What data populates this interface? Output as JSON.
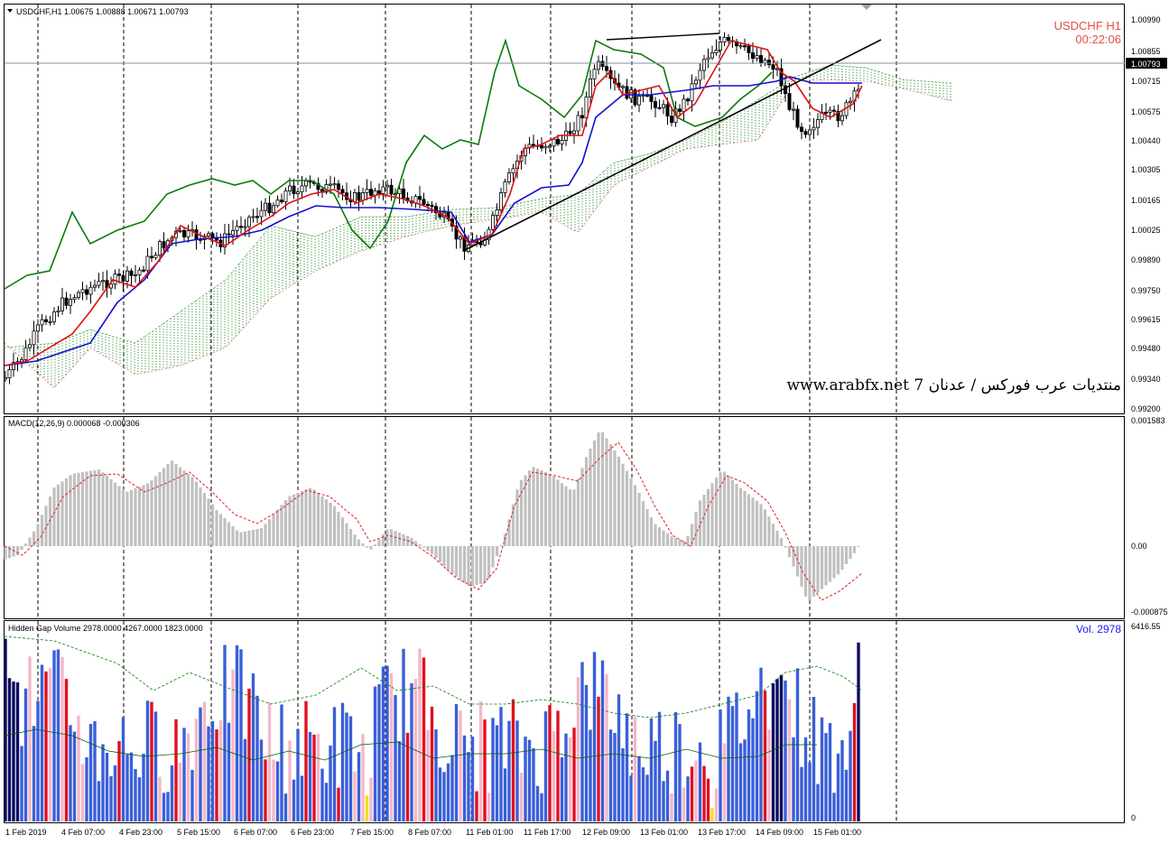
{
  "main_header": "USDCHF,H1  1.00675 1.00888 1.00671 1.00793",
  "symbol_label": "USDCHF  H1",
  "timer_label": "00:22:06",
  "watermark": "www.arabfx.net 7 منتديات عرب فوركس / عدنان",
  "current_price_label": "1.00793",
  "price_axis": [
    "1.00990",
    "1.00855",
    "1.00793",
    "1.00715",
    "1.00575",
    "1.00440",
    "1.00305",
    "1.00165",
    "1.00025",
    "0.99890",
    "0.99750",
    "0.99615",
    "0.99480",
    "0.99340",
    "0.99200"
  ],
  "macd_header": "MACD(12,26,9) 0.000068 -0.000306",
  "macd_axis": [
    "0.001583",
    "0.00",
    "-0.000875"
  ],
  "volume_header": "Hidden Gap Volume 2978.0000 4267.0000 1823.0000",
  "volume_label": "Vol.  2978",
  "volume_axis": [
    "6416.55",
    "0"
  ],
  "time_axis": [
    "1 Feb 2019",
    "4 Feb 07:00",
    "4 Feb 23:00",
    "5 Feb 15:00",
    "6 Feb 07:00",
    "6 Feb 23:00",
    "7 Feb 15:00",
    "8 Feb 07:00",
    "11 Feb 01:00",
    "11 Feb 17:00",
    "12 Feb 09:00",
    "13 Feb 01:00",
    "13 Feb 17:00",
    "14 Feb 09:00",
    "15 Feb 01:00"
  ],
  "colors": {
    "bull": "#000000",
    "kijun": "#1010d0",
    "tenkan": "#dd1010",
    "chikou": "#0a7a0a",
    "cloud_bull": "#0a7a0a",
    "cloud_bear": "#c03030",
    "macd_hist": "#c0c0c0",
    "macd_signal": "#e02020",
    "vol_blue": "#3a5fd8",
    "vol_red": "#e01020",
    "vol_pink": "#f4b8c8",
    "vol_yellow": "#f0e020",
    "vol_navy": "#0a0a60"
  }
}
